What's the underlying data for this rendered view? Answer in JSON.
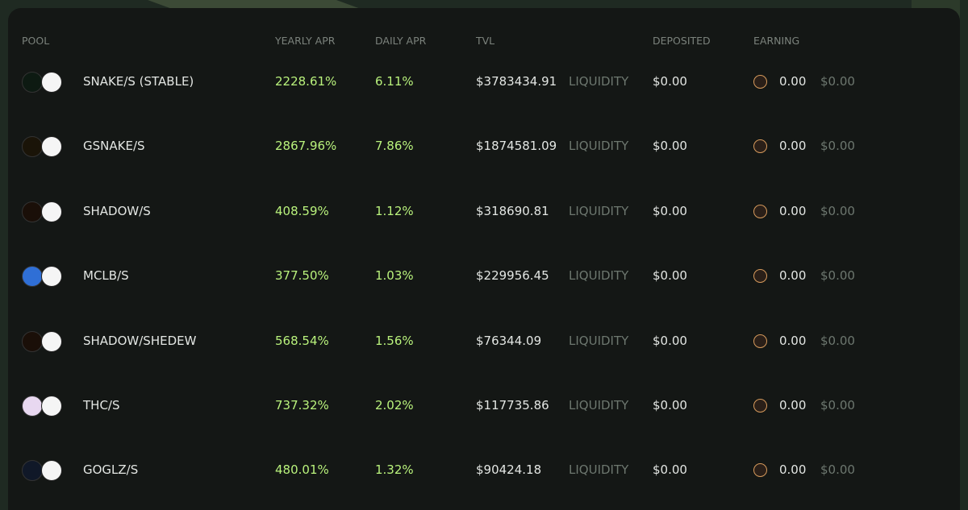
{
  "table": {
    "headers": [
      "POOL",
      "YEARLY APR",
      "DAILY APR",
      "TVL",
      "DEPOSITED",
      "EARNING"
    ],
    "rows": [
      {
        "pool": "SNAKE/S (STABLE)",
        "yearly_apr": "2228.61%",
        "daily_apr": "6.11%",
        "tvl": "$3783434.91",
        "action": "LIQUIDITY",
        "deposited": "$0.00",
        "earning": "0.00",
        "earning_usd": "$0.00"
      },
      {
        "pool": "GSNAKE/S",
        "yearly_apr": "2867.96%",
        "daily_apr": "7.86%",
        "tvl": "$1874581.09",
        "action": "LIQUIDITY",
        "deposited": "$0.00",
        "earning": "0.00",
        "earning_usd": "$0.00"
      },
      {
        "pool": "SHADOW/S",
        "yearly_apr": "408.59%",
        "daily_apr": "1.12%",
        "tvl": "$318690.81",
        "action": "LIQUIDITY",
        "deposited": "$0.00",
        "earning": "0.00",
        "earning_usd": "$0.00"
      },
      {
        "pool": "MCLB/S",
        "yearly_apr": "377.50%",
        "daily_apr": "1.03%",
        "tvl": "$229956.45",
        "action": "LIQUIDITY",
        "deposited": "$0.00",
        "earning": "0.00",
        "earning_usd": "$0.00"
      },
      {
        "pool": "SHADOW/SHEDEW",
        "yearly_apr": "568.54%",
        "daily_apr": "1.56%",
        "tvl": "$76344.09",
        "action": "LIQUIDITY",
        "deposited": "$0.00",
        "earning": "0.00",
        "earning_usd": "$0.00"
      },
      {
        "pool": "THC/S",
        "yearly_apr": "737.32%",
        "daily_apr": "2.02%",
        "tvl": "$117735.86",
        "action": "LIQUIDITY",
        "deposited": "$0.00",
        "earning": "0.00",
        "earning_usd": "$0.00"
      },
      {
        "pool": "GOGLZ/S",
        "yearly_apr": "480.01%",
        "daily_apr": "1.32%",
        "tvl": "$90424.18",
        "action": "LIQUIDITY",
        "deposited": "$0.00",
        "earning": "0.00",
        "earning_usd": "$0.00"
      }
    ]
  }
}
